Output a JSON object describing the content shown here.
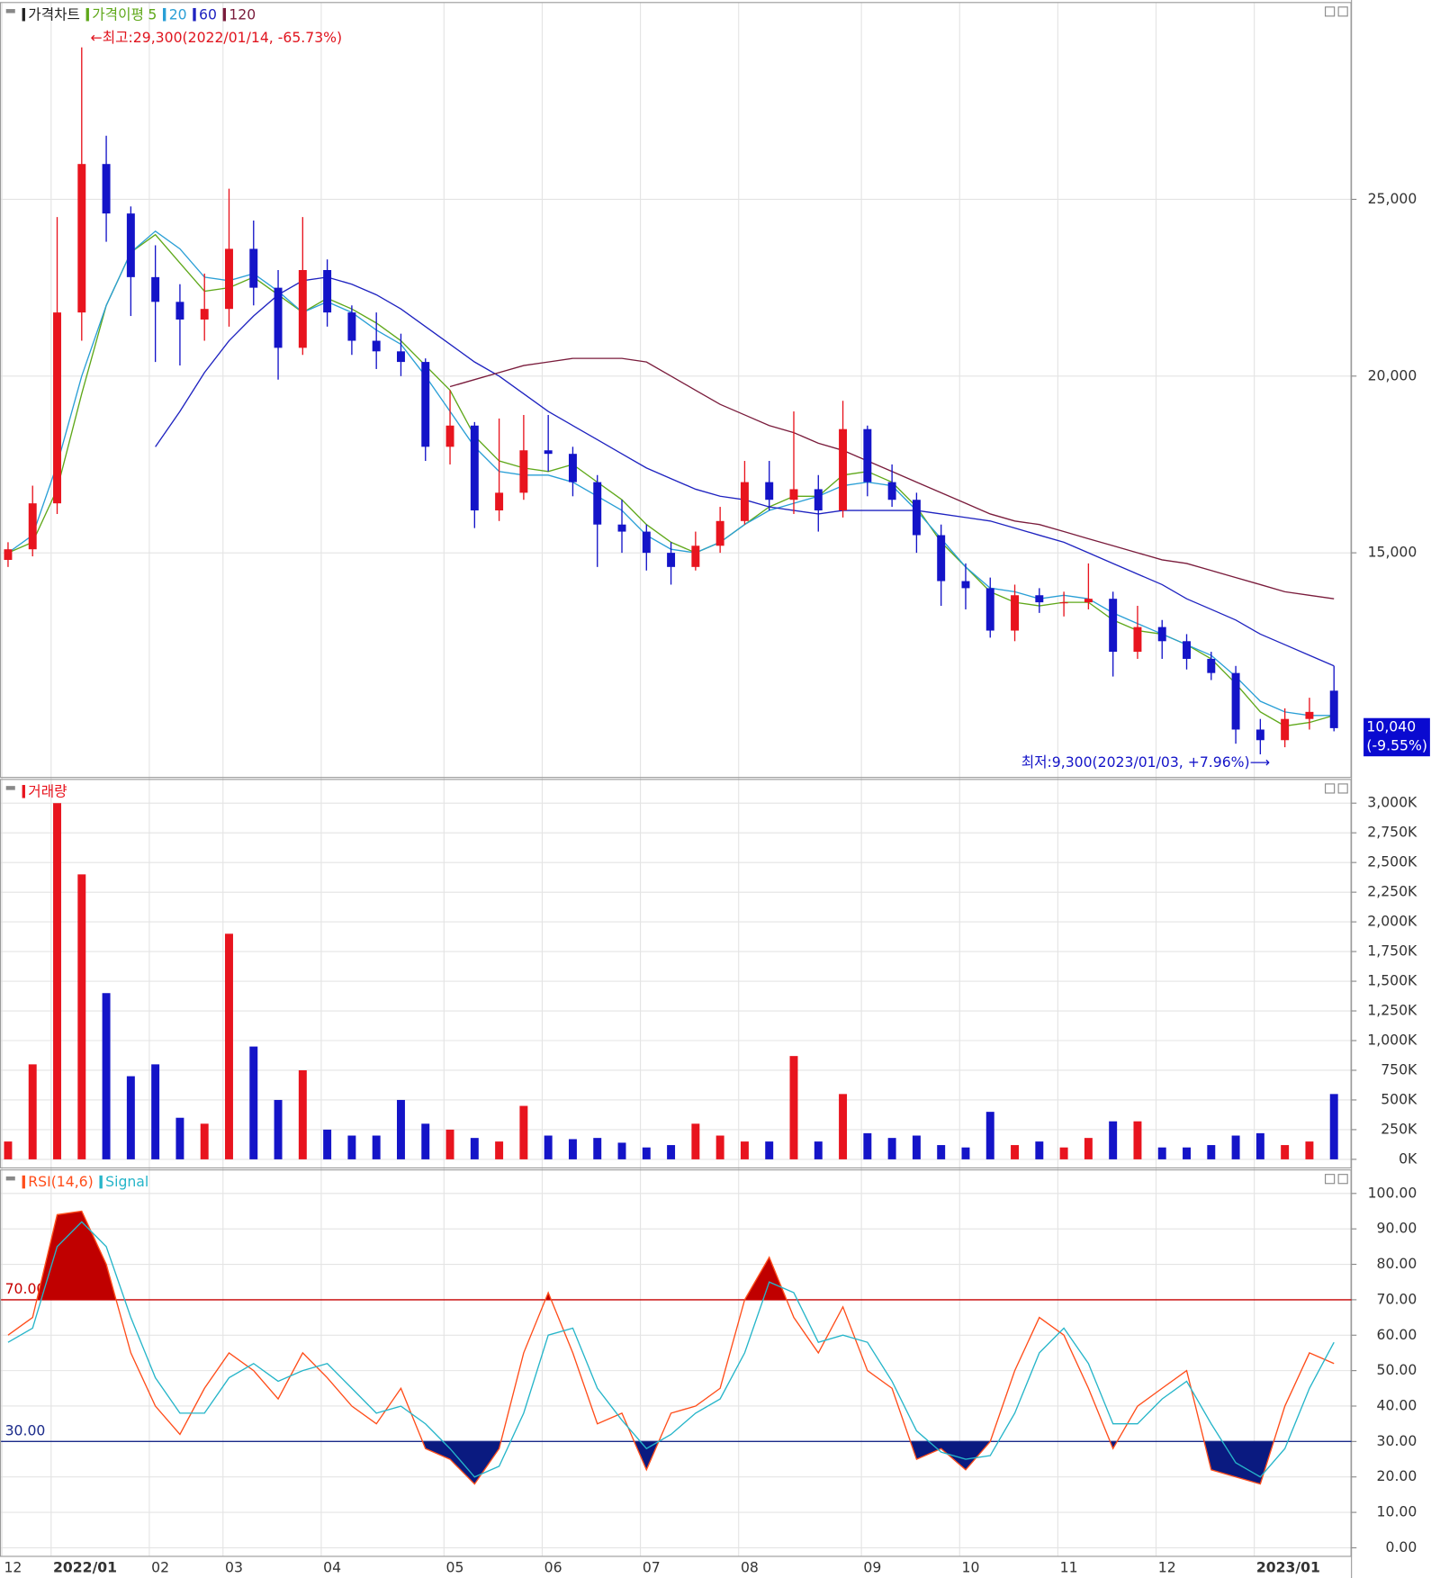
{
  "chart_data": [
    {
      "type": "candlestick",
      "name": "가격차트",
      "categories": [
        "12",
        null,
        "2022/01",
        null,
        null,
        null,
        "02",
        null,
        null,
        "03",
        null,
        null,
        null,
        "04",
        null,
        null,
        null,
        null,
        "05",
        null,
        null,
        null,
        "06",
        null,
        null,
        null,
        "07",
        null,
        null,
        null,
        "08",
        null,
        null,
        null,
        null,
        "09",
        null,
        null,
        null,
        "10",
        null,
        null,
        null,
        "11",
        null,
        null,
        null,
        "12",
        null,
        null,
        null,
        "2023/01",
        null,
        null,
        null
      ],
      "open": [
        14800,
        15100,
        16400,
        21800,
        26000,
        24600,
        22800,
        22100,
        21600,
        21900,
        23600,
        22500,
        20800,
        23000,
        21800,
        21000,
        20700,
        20400,
        18000,
        18600,
        16200,
        16700,
        17900,
        17800,
        17000,
        15800,
        15600,
        15000,
        14600,
        15200,
        15900,
        17000,
        16500,
        16800,
        16200,
        18500,
        17000,
        16500,
        15500,
        14200,
        14000,
        12800,
        13800,
        13600,
        13600,
        13700,
        12200,
        12900,
        12500,
        12000,
        11600,
        10000,
        9700,
        10300,
        11100
      ],
      "high": [
        15300,
        16900,
        24500,
        29300,
        26800,
        24800,
        23700,
        22600,
        22900,
        25300,
        24400,
        23000,
        24500,
        23300,
        22000,
        21800,
        21200,
        20500,
        19600,
        18700,
        18800,
        18900,
        18900,
        18000,
        17200,
        16500,
        15800,
        15300,
        15600,
        16300,
        17600,
        17600,
        19000,
        17200,
        19300,
        18600,
        17500,
        16700,
        15800,
        14700,
        14300,
        14100,
        14000,
        13900,
        14700,
        13900,
        13500,
        13100,
        12700,
        12200,
        11800,
        10300,
        10600,
        10900,
        11800
      ],
      "low": [
        14600,
        14900,
        16100,
        21000,
        23800,
        21700,
        20400,
        20300,
        21000,
        21400,
        22000,
        19900,
        20600,
        21400,
        20600,
        20200,
        20000,
        17600,
        17500,
        15700,
        15900,
        16500,
        17300,
        16600,
        14600,
        15000,
        14500,
        14100,
        14500,
        15000,
        15800,
        16200,
        16100,
        15600,
        16000,
        16600,
        16300,
        15000,
        13500,
        13400,
        12600,
        12500,
        13300,
        13200,
        13400,
        11500,
        12000,
        12000,
        11700,
        11400,
        9600,
        9300,
        9500,
        10000,
        9950
      ],
      "close": [
        15100,
        16400,
        21800,
        26000,
        24600,
        22800,
        22100,
        21600,
        21900,
        23600,
        22500,
        20800,
        23000,
        21800,
        21000,
        20700,
        20400,
        18000,
        18600,
        16200,
        16700,
        17900,
        17800,
        17000,
        15800,
        15600,
        15000,
        14600,
        15200,
        15900,
        17000,
        16500,
        16800,
        16200,
        18500,
        17000,
        16500,
        15500,
        14200,
        14000,
        12800,
        13800,
        13600,
        13600,
        13700,
        12200,
        12900,
        12500,
        12000,
        11600,
        10000,
        9700,
        10300,
        10500,
        10040
      ],
      "up_color": "#e8141e",
      "down_color": "#1414c8",
      "legend_color": "#222222",
      "ma_title": "가격이평",
      "series": [
        {
          "name": "5",
          "color": "#5fa81a",
          "values": [
            15000,
            15300,
            16800,
            19500,
            22000,
            23500,
            24000,
            23200,
            22400,
            22500,
            22800,
            22300,
            21800,
            22200,
            21900,
            21500,
            21000,
            20300,
            19600,
            18300,
            17600,
            17400,
            17300,
            17500,
            17000,
            16500,
            15800,
            15300,
            15000,
            15300,
            15800,
            16300,
            16600,
            16600,
            17200,
            17300,
            17000,
            16300,
            15300,
            14600,
            13900,
            13600,
            13500,
            13600,
            13600,
            13100,
            12800,
            12700,
            12400,
            12000,
            11300,
            10500,
            10100,
            10200,
            10400
          ]
        },
        {
          "name": "20",
          "color": "#2a9fd6",
          "values": [
            15000,
            15500,
            17500,
            20000,
            22000,
            23500,
            24100,
            23600,
            22800,
            22700,
            22900,
            22400,
            21800,
            22100,
            21800,
            21300,
            20900,
            20000,
            19000,
            18000,
            17300,
            17200,
            17200,
            17000,
            16600,
            16200,
            15500,
            15100,
            15000,
            15300,
            15800,
            16200,
            16400,
            16600,
            16900,
            17000,
            16900,
            16200,
            15400,
            14600,
            14000,
            13900,
            13700,
            13800,
            13700,
            13300,
            13000,
            12700,
            12400,
            12100,
            11500,
            10800,
            10500,
            10400,
            10400
          ]
        },
        {
          "name": "60",
          "color": "#1f23c0",
          "values": [
            null,
            null,
            null,
            null,
            null,
            null,
            18000,
            19000,
            20100,
            21000,
            21700,
            22300,
            22700,
            22800,
            22600,
            22300,
            21900,
            21400,
            20900,
            20400,
            20000,
            19500,
            19000,
            18600,
            18200,
            17800,
            17400,
            17100,
            16800,
            16600,
            16500,
            16300,
            16200,
            16100,
            16200,
            16200,
            16200,
            16200,
            16100,
            16000,
            15900,
            15700,
            15500,
            15300,
            15000,
            14700,
            14400,
            14100,
            13700,
            13400,
            13100,
            12700,
            12400,
            12100,
            11800
          ]
        },
        {
          "name": "120",
          "color": "#7a1c3c",
          "values": [
            null,
            null,
            null,
            null,
            null,
            null,
            null,
            null,
            null,
            null,
            null,
            null,
            null,
            null,
            null,
            null,
            null,
            null,
            19700,
            19900,
            20100,
            20300,
            20400,
            20500,
            20500,
            20500,
            20400,
            20000,
            19600,
            19200,
            18900,
            18600,
            18400,
            18100,
            17900,
            17600,
            17300,
            17000,
            16700,
            16400,
            16100,
            15900,
            15800,
            15600,
            15400,
            15200,
            15000,
            14800,
            14700,
            14500,
            14300,
            14100,
            13900,
            13800,
            13700
          ]
        }
      ],
      "ylim": [
        8660,
        30640
      ],
      "yticks": [
        {
          "value": 15000,
          "label": "15,000"
        },
        {
          "value": 20000,
          "label": "20,000"
        },
        {
          "value": 25000,
          "label": "25,000"
        }
      ],
      "grid": true,
      "annotations": [
        "←최고:29,300(2022/01/14, -65.73%)",
        "최저:9,300(2023/01/03, +7.96%)⟶"
      ],
      "last_price": {
        "value": 10040,
        "label": "10,040",
        "change": "(-9.55%)",
        "color": "#0a0ad0"
      }
    },
    {
      "type": "bar",
      "title": "거래량",
      "color": "#e8141e",
      "values": [
        150,
        800,
        3000,
        2400,
        1400,
        700,
        800,
        350,
        300,
        1900,
        950,
        500,
        750,
        250,
        200,
        200,
        500,
        300,
        250,
        180,
        150,
        450,
        200,
        170,
        180,
        140,
        100,
        120,
        300,
        200,
        150,
        150,
        870,
        150,
        550,
        220,
        180,
        200,
        120,
        100,
        400,
        120,
        150,
        100,
        180,
        320,
        320,
        100,
        100,
        120,
        200,
        220,
        120,
        150,
        550
      ],
      "ylim": [
        -68,
        3170
      ],
      "yticks": [
        {
          "value": 0,
          "label": "0K"
        },
        {
          "value": 250,
          "label": "250K"
        },
        {
          "value": 500,
          "label": "500K"
        },
        {
          "value": 750,
          "label": "750K"
        },
        {
          "value": 1000,
          "label": "1,000K"
        },
        {
          "value": 1250,
          "label": "1,250K"
        },
        {
          "value": 1500,
          "label": "1,500K"
        },
        {
          "value": 1750,
          "label": "1,750K"
        },
        {
          "value": 2000,
          "label": "2,000K"
        },
        {
          "value": 2250,
          "label": "2,250K"
        },
        {
          "value": 2500,
          "label": "2,500K"
        },
        {
          "value": 2750,
          "label": "2,750K"
        },
        {
          "value": 3000,
          "label": "3,000K"
        }
      ],
      "grid": true
    },
    {
      "type": "line",
      "series": [
        {
          "name": "RSI(14,6)",
          "color": "#ff4d1a",
          "values": [
            60,
            65,
            94,
            95,
            80,
            55,
            40,
            32,
            45,
            55,
            50,
            42,
            55,
            48,
            40,
            35,
            45,
            28,
            25,
            18,
            28,
            55,
            72,
            55,
            35,
            38,
            22,
            38,
            40,
            45,
            70,
            82,
            65,
            55,
            68,
            50,
            45,
            25,
            28,
            22,
            30,
            50,
            65,
            60,
            45,
            28,
            40,
            45,
            50,
            22,
            20,
            18,
            40,
            55,
            52
          ]
        },
        {
          "name": "Signal",
          "color": "#26b5c9",
          "values": [
            58,
            62,
            85,
            92,
            85,
            65,
            48,
            38,
            38,
            48,
            52,
            47,
            50,
            52,
            45,
            38,
            40,
            35,
            28,
            20,
            23,
            38,
            60,
            62,
            45,
            36,
            28,
            32,
            38,
            42,
            55,
            75,
            72,
            58,
            60,
            58,
            47,
            33,
            27,
            25,
            26,
            38,
            55,
            62,
            52,
            35,
            35,
            42,
            47,
            35,
            24,
            20,
            28,
            45,
            58
          ]
        }
      ],
      "levels": [
        {
          "value": 70,
          "label": "70.00",
          "color": "#c80000",
          "fill": "#c00000",
          "side": "above"
        },
        {
          "value": 30,
          "label": "30.00",
          "color": "#1a2a8a",
          "fill": "#0a1a80",
          "side": "below"
        }
      ],
      "ylim": [
        -6.25,
        106.5
      ],
      "yticks": [
        {
          "value": 0,
          "label": "0.00"
        },
        {
          "value": 10,
          "label": "10.00"
        },
        {
          "value": 20,
          "label": "20.00"
        },
        {
          "value": 30,
          "label": "30.00"
        },
        {
          "value": 40,
          "label": "40.00"
        },
        {
          "value": 50,
          "label": "50.00"
        },
        {
          "value": 60,
          "label": "60.00"
        },
        {
          "value": 70,
          "label": "70.00"
        },
        {
          "value": 80,
          "label": "80.00"
        },
        {
          "value": 90,
          "label": "90.00"
        },
        {
          "value": 100,
          "label": "100.00"
        }
      ],
      "grid": true
    }
  ]
}
